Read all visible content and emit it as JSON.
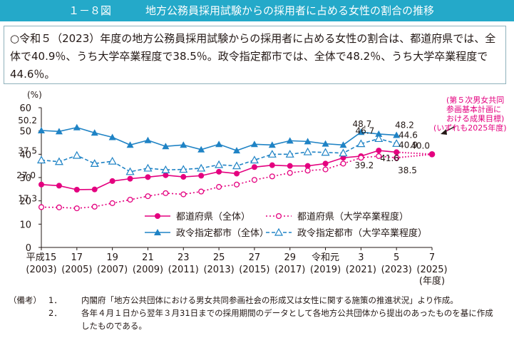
{
  "title": {
    "figure_no": "１－８図",
    "text": "地方公務員採用試験からの採用者に占める女性の割合の推移"
  },
  "summary": "○令和５（2023）年度の地方公務員採用試験からの採用者に占める女性の割合は、都道府県では、全体で40.9％、うち大学卒業程度で38.5％。政令指定都市では、全体で48.2％、うち大学卒業程度で44.6％。",
  "colors": {
    "prefecture": "#e4007f",
    "designated_city": "#1f83c5",
    "title_bg": "#24a9c9"
  },
  "chart_data": {
    "type": "line",
    "ylabel": "(%)",
    "ylim": [
      0,
      60
    ],
    "yticks": [
      0,
      10,
      20,
      30,
      40,
      50,
      60
    ],
    "x": [
      2003,
      2004,
      2005,
      2006,
      2007,
      2008,
      2009,
      2010,
      2011,
      2012,
      2013,
      2014,
      2015,
      2016,
      2017,
      2018,
      2019,
      2020,
      2021,
      2022,
      2023
    ],
    "x_tick_labels": [
      {
        "x": 2003,
        "top": "平成15",
        "bottom": "(2003)"
      },
      {
        "x": 2005,
        "top": "17",
        "bottom": "(2005)"
      },
      {
        "x": 2007,
        "top": "19",
        "bottom": "(2007)"
      },
      {
        "x": 2009,
        "top": "21",
        "bottom": "(2009)"
      },
      {
        "x": 2011,
        "top": "23",
        "bottom": "(2011)"
      },
      {
        "x": 2013,
        "top": "25",
        "bottom": "(2013)"
      },
      {
        "x": 2015,
        "top": "27",
        "bottom": "(2015)"
      },
      {
        "x": 2017,
        "top": "29",
        "bottom": "(2017)"
      },
      {
        "x": 2019,
        "top": "令和元",
        "bottom": "(2019)"
      },
      {
        "x": 2021,
        "top": "3",
        "bottom": "(2021)"
      },
      {
        "x": 2023,
        "top": "5",
        "bottom": "(2023)"
      },
      {
        "x": 2025,
        "top": "7",
        "bottom": "(2025)"
      }
    ],
    "x_unit": "(年度)",
    "series": [
      {
        "name": "都道府県（全体）",
        "color": "#e4007f",
        "style": "solid",
        "marker": "circle",
        "values": [
          27.0,
          26.5,
          24.8,
          24.9,
          28.5,
          29.5,
          30.2,
          31.0,
          30.3,
          30.8,
          32.5,
          31.7,
          34.5,
          35.3,
          35.0,
          35.0,
          36.0,
          38.5,
          39.2,
          41.6,
          40.9
        ]
      },
      {
        "name": "都道府県（大学卒業程度）",
        "color": "#e4007f",
        "style": "dotted",
        "marker": "open-circle",
        "values": [
          17.3,
          17.2,
          16.8,
          17.5,
          19.0,
          20.5,
          22.0,
          23.3,
          22.8,
          24.0,
          26.0,
          27.0,
          29.0,
          30.5,
          32.0,
          33.0,
          33.5,
          36.0,
          38.5,
          39.2,
          38.5
        ]
      },
      {
        "name": "政令指定都市（全体）",
        "color": "#1f83c5",
        "style": "solid",
        "marker": "triangle",
        "values": [
          50.2,
          49.8,
          51.5,
          49.2,
          47.3,
          44.0,
          46.0,
          43.4,
          44.0,
          42.0,
          44.3,
          41.6,
          44.3,
          44.0,
          45.8,
          45.5,
          44.5,
          44.0,
          49.5,
          48.7,
          48.2
        ]
      },
      {
        "name": "政令指定都市（大学卒業程度）",
        "color": "#1f83c5",
        "style": "dashed",
        "marker": "open-triangle",
        "values": [
          37.5,
          36.8,
          39.5,
          36.0,
          37.0,
          32.5,
          34.0,
          33.3,
          33.5,
          34.0,
          35.5,
          35.0,
          37.5,
          40.0,
          40.0,
          41.0,
          40.8,
          40.5,
          44.5,
          46.7,
          44.6
        ]
      }
    ],
    "data_labels": [
      {
        "text": "27.0",
        "series": 0,
        "x": 2003
      },
      {
        "text": "17.3",
        "series": 1,
        "x": 2003
      },
      {
        "text": "50.2",
        "series": 2,
        "x": 2003
      },
      {
        "text": "37.5",
        "series": 3,
        "x": 2003
      },
      {
        "text": "48.7",
        "series": 2,
        "x": 2022
      },
      {
        "text": "46.7",
        "series": 3,
        "x": 2022
      },
      {
        "text": "48.2",
        "series": 2,
        "x": 2023
      },
      {
        "text": "44.6",
        "series": 3,
        "x": 2023
      },
      {
        "text": "40.9",
        "series": 0,
        "x": 2023
      },
      {
        "text": "39.2",
        "series": 1,
        "x": 2022
      },
      {
        "text": "41.6",
        "series": 0,
        "x": 2022
      },
      {
        "text": "38.5",
        "series": 1,
        "x": 2023
      }
    ],
    "target": {
      "x": 2025,
      "value": 40.0,
      "label": "40.0",
      "note_lines": [
        "(第５次男女共同",
        "参画基本計画に",
        "おける成果目標)",
        "(いずれも2025年度)"
      ]
    },
    "legend": [
      {
        "label": "都道府県（全体）",
        "series": 0
      },
      {
        "label": "都道府県（大学卒業程度）",
        "series": 1
      },
      {
        "label": "政令指定都市（全体）",
        "series": 2
      },
      {
        "label": "政令指定都市（大学卒業程度）",
        "series": 3
      }
    ]
  },
  "notes": {
    "label": "（備考）",
    "items": [
      {
        "num": "1．",
        "lines": [
          "内閣府「地方公共団体における男女共同参画社会の形成又は女性に関する施策の推進状況」より作成。"
        ]
      },
      {
        "num": "2．",
        "lines": [
          "各年４月１日から翌年３月31日までの採用期間のデータとして各地方公共団体から提出のあったものを基に作成",
          "したものである。"
        ]
      }
    ]
  }
}
